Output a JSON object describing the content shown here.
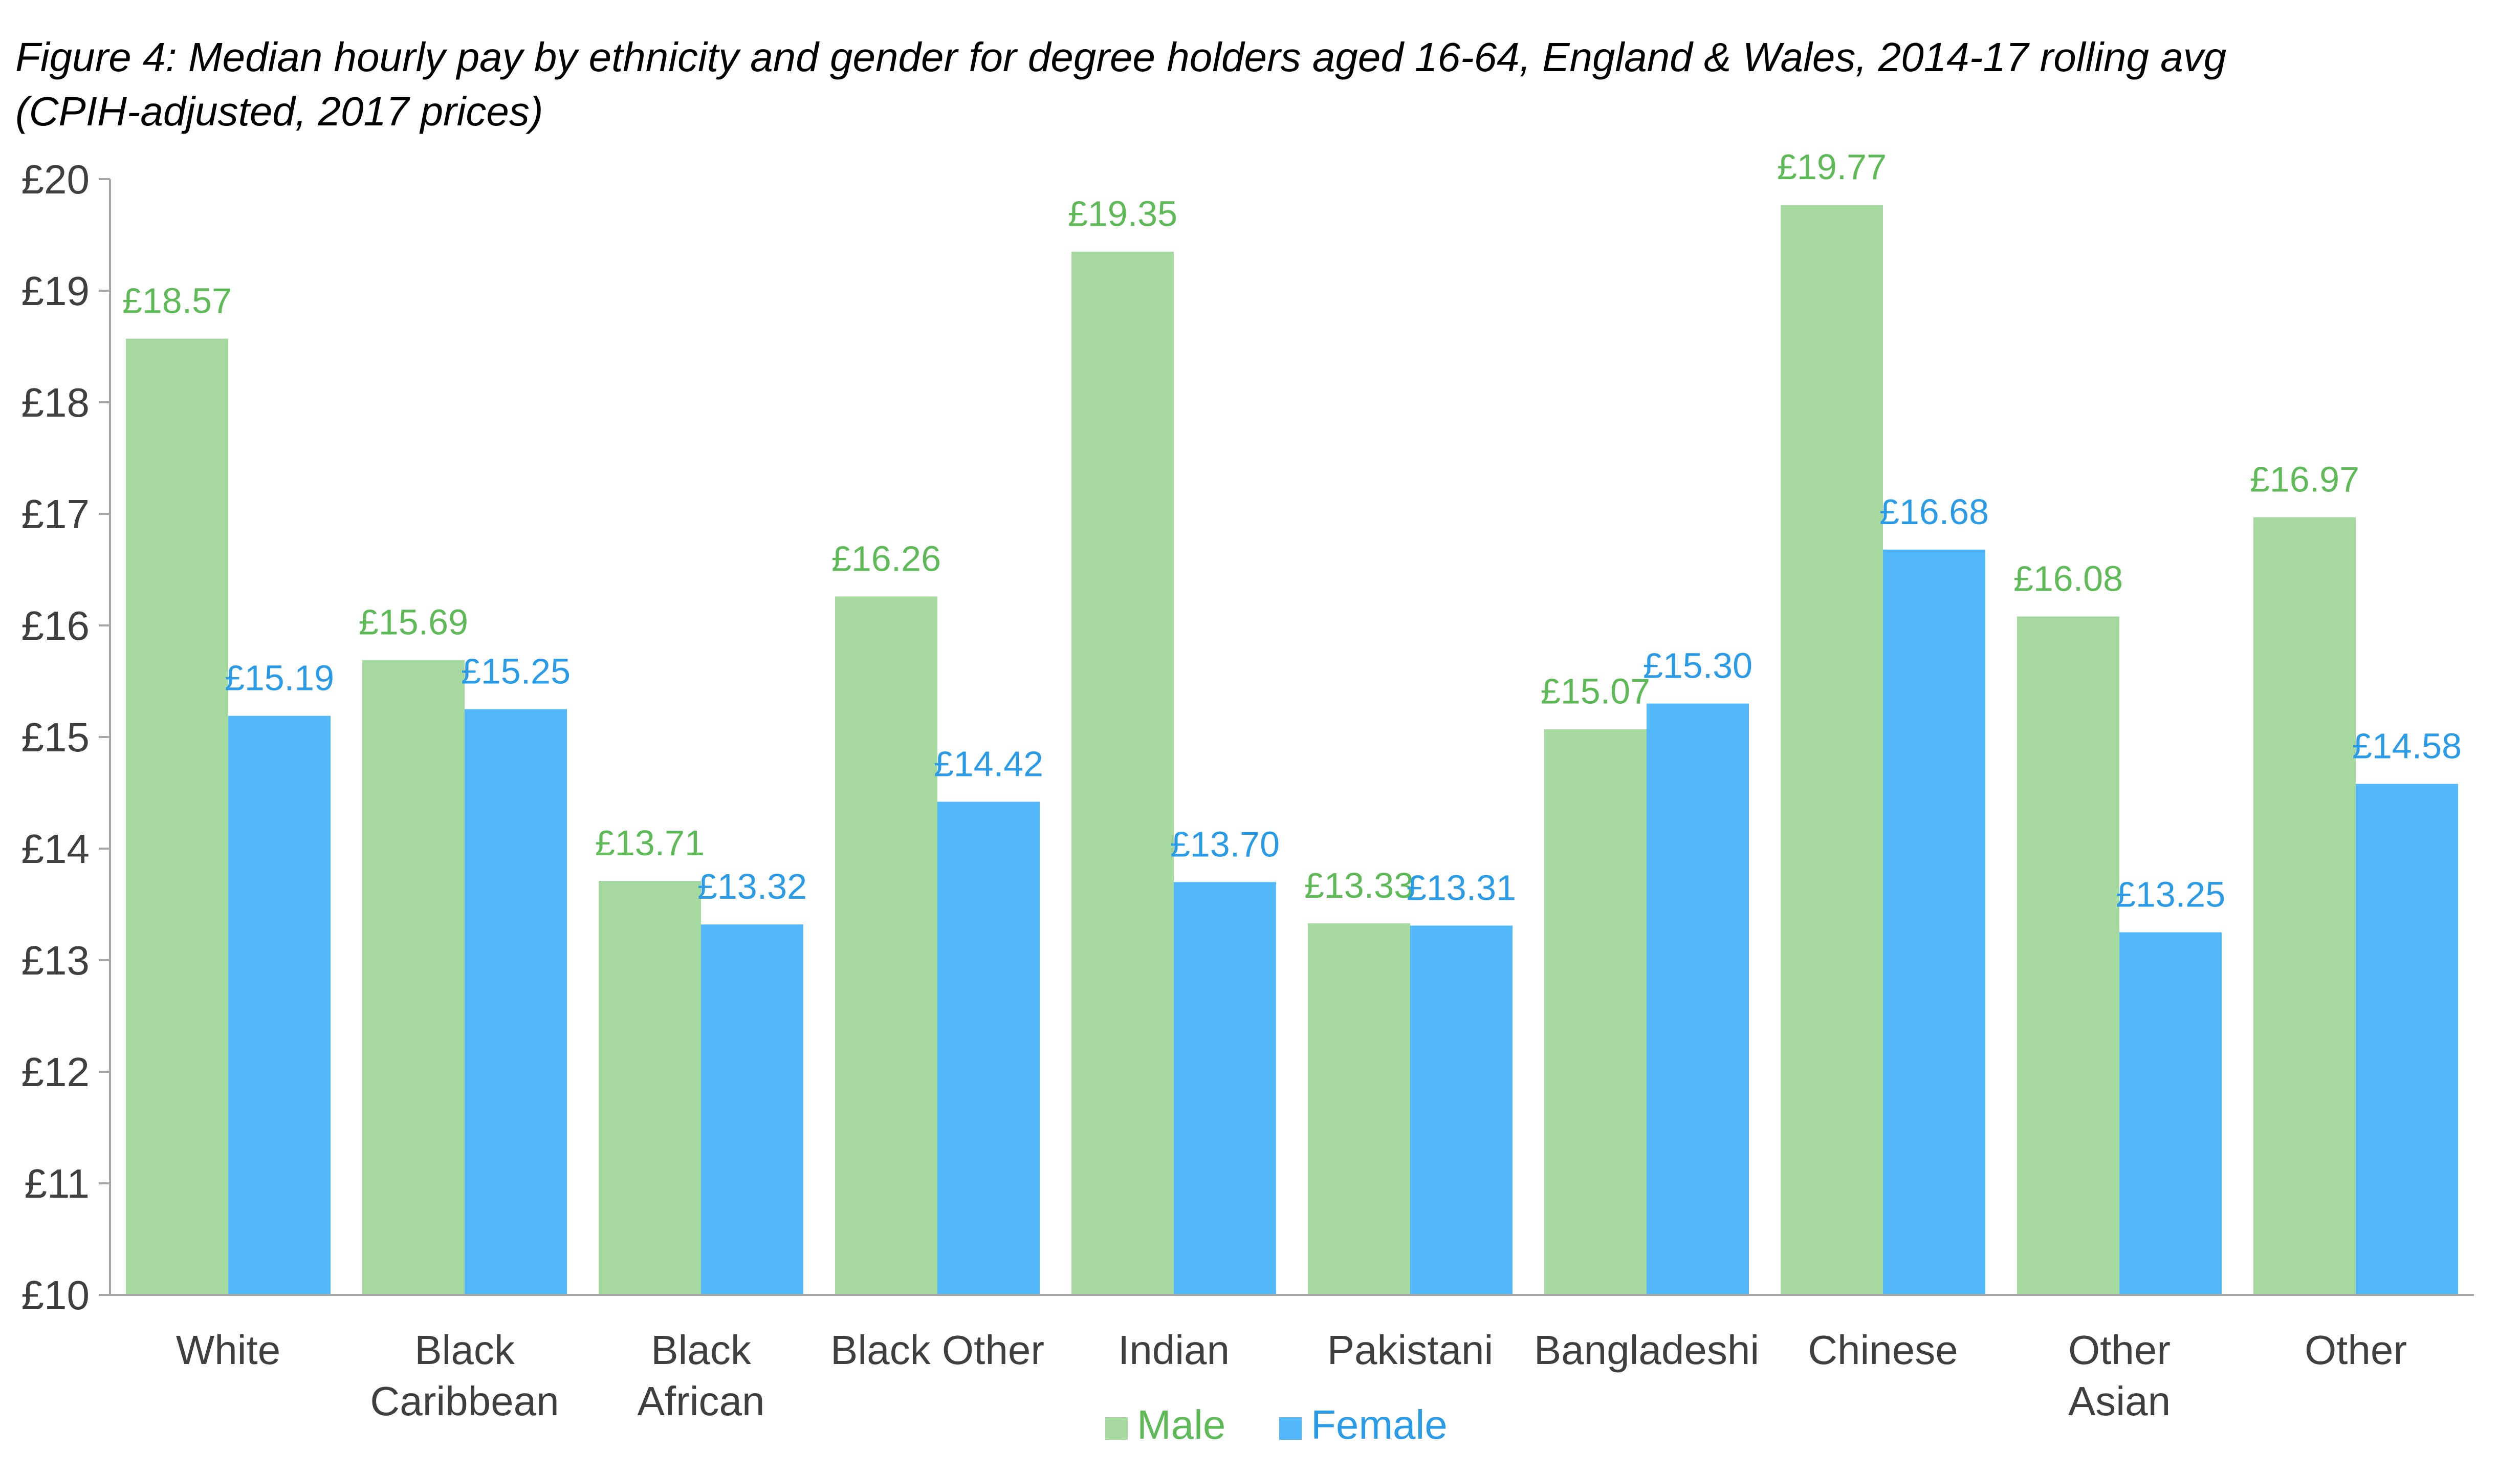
{
  "chart_data": {
    "type": "bar",
    "title": "Figure 4: Median hourly pay by ethnicity and gender for degree holders aged 16-64, England & Wales, 2014-17 rolling avg",
    "subtitle": "(CPIH-adjusted, 2017 prices)",
    "categories": [
      [
        "White"
      ],
      [
        "Black",
        "Caribbean"
      ],
      [
        "Black",
        "African"
      ],
      [
        "Black Other"
      ],
      [
        "Indian"
      ],
      [
        "Pakistani"
      ],
      [
        "Bangladeshi"
      ],
      [
        "Chinese"
      ],
      [
        "Other",
        "Asian"
      ],
      [
        "Other"
      ]
    ],
    "series": [
      {
        "name": "Male",
        "color": "#A5D9A0",
        "label_color": "#5DBA57",
        "values": [
          18.57,
          15.69,
          13.71,
          16.26,
          19.35,
          13.33,
          15.07,
          19.77,
          16.08,
          16.97
        ],
        "labels": [
          "£18.57",
          "£15.69",
          "£13.71",
          "£16.26",
          "£19.35",
          "£13.33",
          "£15.07",
          "£19.77",
          "£16.08",
          "£16.97"
        ]
      },
      {
        "name": "Female",
        "color": "#52B8FA",
        "label_color": "#2A9BE6",
        "values": [
          15.19,
          15.25,
          13.32,
          14.42,
          13.7,
          13.31,
          15.3,
          16.68,
          13.25,
          14.58
        ],
        "labels": [
          "£15.19",
          "£15.25",
          "£13.32",
          "£14.42",
          "£13.70",
          "£13.31",
          "£15.30",
          "£16.68",
          "£13.25",
          "£14.58"
        ]
      }
    ],
    "ylim": [
      10,
      20
    ],
    "yticks": [
      10,
      11,
      12,
      13,
      14,
      15,
      16,
      17,
      18,
      19,
      20
    ],
    "ytick_labels": [
      "£10",
      "£11",
      "£12",
      "£13",
      "£14",
      "£15",
      "£16",
      "£17",
      "£18",
      "£19",
      "£20"
    ],
    "grid": false,
    "legend": "bottom-center",
    "xlabel": "",
    "ylabel": ""
  }
}
